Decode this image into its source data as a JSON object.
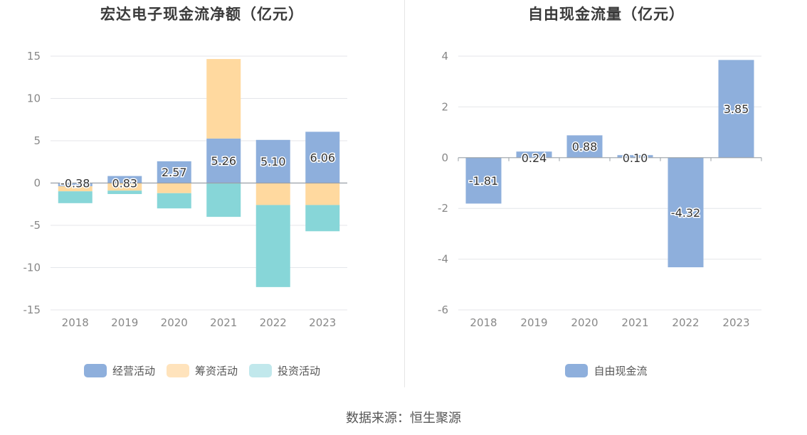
{
  "colors": {
    "operating": "#8eafdc",
    "financing": "#ffd99f",
    "investing": "#87d6d8",
    "financing_legend": "#ffe3bc",
    "investing_legend": "#c1e8ec",
    "free_cash_flow": "#8eafdc",
    "grid": "#e4e6ea",
    "axis": "#9aa0a6",
    "tick": "#888888"
  },
  "footer": "数据来源：恒生聚源",
  "chart_data": [
    {
      "type": "bar",
      "stacked": true,
      "title": "宏达电子现金流净额（亿元）",
      "categories": [
        "2018",
        "2019",
        "2020",
        "2021",
        "2022",
        "2023"
      ],
      "ylim": [
        -15,
        15
      ],
      "yticks": [
        15,
        10,
        5,
        0,
        -5,
        -10,
        -15
      ],
      "grid": true,
      "legend_position": "bottom",
      "series": [
        {
          "name": "经营活动",
          "values": [
            -0.38,
            0.83,
            2.57,
            5.26,
            5.1,
            6.06
          ],
          "labels": [
            "-0.38",
            "0.83",
            "2.57",
            "5.26",
            "5.10",
            "6.06"
          ]
        },
        {
          "name": "筹资活动",
          "values": [
            -0.6,
            -0.9,
            -1.2,
            9.4,
            -2.6,
            -2.6
          ]
        },
        {
          "name": "投资活动",
          "values": [
            -1.4,
            -0.4,
            -1.8,
            -4.0,
            -9.7,
            -3.1
          ]
        }
      ]
    },
    {
      "type": "bar",
      "title": "自由现金流量（亿元）",
      "categories": [
        "2018",
        "2019",
        "2020",
        "2021",
        "2022",
        "2023"
      ],
      "ylim": [
        -6,
        4
      ],
      "yticks": [
        4,
        2,
        0,
        -2,
        -4,
        -6
      ],
      "grid": true,
      "legend_position": "bottom",
      "series": [
        {
          "name": "自由现金流",
          "values": [
            -1.81,
            0.24,
            0.88,
            0.1,
            -4.32,
            3.85
          ],
          "labels": [
            "-1.81",
            "0.24",
            "0.88",
            "0.10",
            "-4.32",
            "3.85"
          ]
        }
      ]
    }
  ]
}
